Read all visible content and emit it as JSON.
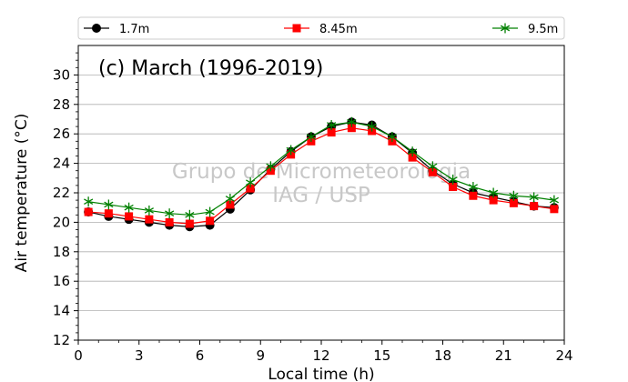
{
  "chart_data": {
    "type": "line",
    "title": "(c) March (1996-2019)",
    "xlabel": "Local time (h)",
    "ylabel": "Air temperature (°C)",
    "xlim": [
      0,
      24
    ],
    "ylim": [
      12,
      32
    ],
    "xticks": [
      0,
      3,
      6,
      9,
      12,
      15,
      18,
      21,
      24
    ],
    "yticks": [
      12,
      14,
      16,
      18,
      20,
      22,
      24,
      26,
      28,
      30
    ],
    "grid": "horizontal",
    "legend_position": "top, outside",
    "watermark": [
      "Grupo de Micrometeorologia",
      "IAG / USP"
    ],
    "x": [
      0.5,
      1.5,
      2.5,
      3.5,
      4.5,
      5.5,
      6.5,
      7.5,
      8.5,
      9.5,
      10.5,
      11.5,
      12.5,
      13.5,
      14.5,
      15.5,
      16.5,
      17.5,
      18.5,
      19.5,
      20.5,
      21.5,
      22.5,
      23.5
    ],
    "series": [
      {
        "name": "1.7m",
        "color": "#000000",
        "marker": "circle",
        "values": [
          20.7,
          20.4,
          20.2,
          20.0,
          19.8,
          19.7,
          19.8,
          20.9,
          22.2,
          23.6,
          24.8,
          25.8,
          26.5,
          26.8,
          26.6,
          25.8,
          24.7,
          23.5,
          22.6,
          22.0,
          21.7,
          21.4,
          21.1,
          21.0
        ]
      },
      {
        "name": "8.45m",
        "color": "#ff0000",
        "marker": "square",
        "values": [
          20.7,
          20.6,
          20.4,
          20.2,
          20.0,
          19.9,
          20.1,
          21.2,
          22.3,
          23.5,
          24.6,
          25.5,
          26.1,
          26.4,
          26.2,
          25.5,
          24.4,
          23.4,
          22.4,
          21.8,
          21.5,
          21.3,
          21.1,
          20.9
        ]
      },
      {
        "name": "9.5m",
        "color": "#008000",
        "marker": "star",
        "values": [
          21.4,
          21.2,
          21.0,
          20.8,
          20.6,
          20.5,
          20.7,
          21.6,
          22.7,
          23.8,
          24.9,
          25.8,
          26.6,
          26.8,
          26.5,
          25.8,
          24.8,
          23.8,
          22.9,
          22.4,
          22.0,
          21.8,
          21.7,
          21.5
        ]
      }
    ]
  }
}
